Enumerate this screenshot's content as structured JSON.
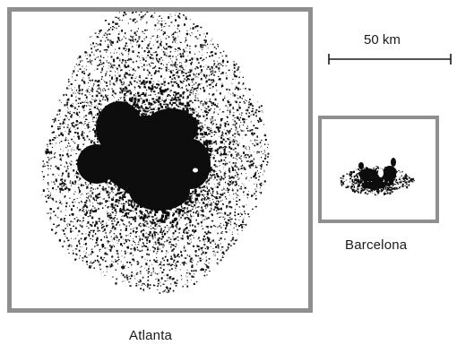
{
  "scale": {
    "label": "50 km"
  },
  "cities": {
    "atlanta": {
      "name": "Atlanta"
    },
    "barcelona": {
      "name": "Barcelona"
    }
  },
  "colors": {
    "frame": "#8f8f8f",
    "urban_area": "#0d0d0d",
    "background": "#ffffff"
  }
}
